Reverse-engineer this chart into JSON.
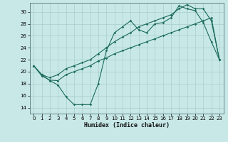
{
  "bg_color": "#c8e8e8",
  "grid_color": "#a8cccc",
  "line_color": "#1a6b5a",
  "xlabel": "Humidex (Indice chaleur)",
  "xlim": [
    -0.5,
    23.5
  ],
  "ylim": [
    13.0,
    31.5
  ],
  "yticks": [
    14,
    16,
    18,
    20,
    22,
    24,
    26,
    28,
    30
  ],
  "xticks": [
    0,
    1,
    2,
    3,
    4,
    5,
    6,
    7,
    8,
    9,
    10,
    11,
    12,
    13,
    14,
    15,
    16,
    17,
    18,
    19,
    20,
    21,
    22,
    23
  ],
  "line1_x": [
    0,
    1,
    2,
    3,
    4,
    5,
    6,
    7,
    8,
    9,
    10,
    11,
    12,
    13,
    14,
    15,
    16,
    17,
    18,
    19,
    20,
    21,
    22,
    23
  ],
  "line1_y": [
    21.0,
    19.3,
    18.6,
    18.5,
    19.5,
    20.0,
    20.5,
    21.0,
    21.8,
    22.3,
    23.0,
    23.5,
    24.0,
    24.5,
    25.0,
    25.5,
    26.0,
    26.5,
    27.0,
    27.5,
    28.0,
    28.5,
    29.0,
    22.0
  ],
  "line2_x": [
    0,
    1,
    2,
    3,
    4,
    5,
    6,
    7,
    8,
    9,
    10,
    11,
    12,
    13,
    14,
    15,
    16,
    17,
    18,
    19,
    20,
    21,
    22,
    23
  ],
  "line2_y": [
    21.0,
    19.5,
    18.5,
    17.8,
    15.8,
    14.5,
    14.5,
    14.5,
    18.0,
    23.5,
    26.5,
    27.5,
    28.5,
    27.0,
    26.5,
    28.0,
    28.2,
    29.0,
    31.0,
    30.5,
    30.2,
    28.2,
    25.0,
    22.0
  ],
  "line3_x": [
    0,
    1,
    2,
    3,
    4,
    5,
    6,
    7,
    8,
    9,
    10,
    11,
    12,
    13,
    14,
    15,
    16,
    17,
    18,
    19,
    20,
    21,
    22,
    23
  ],
  "line3_y": [
    21.0,
    19.5,
    19.0,
    19.5,
    20.5,
    21.0,
    21.5,
    22.0,
    23.0,
    24.0,
    25.0,
    25.8,
    26.5,
    27.5,
    28.0,
    28.5,
    29.0,
    29.5,
    30.5,
    31.2,
    30.5,
    30.5,
    28.5,
    22.0
  ]
}
